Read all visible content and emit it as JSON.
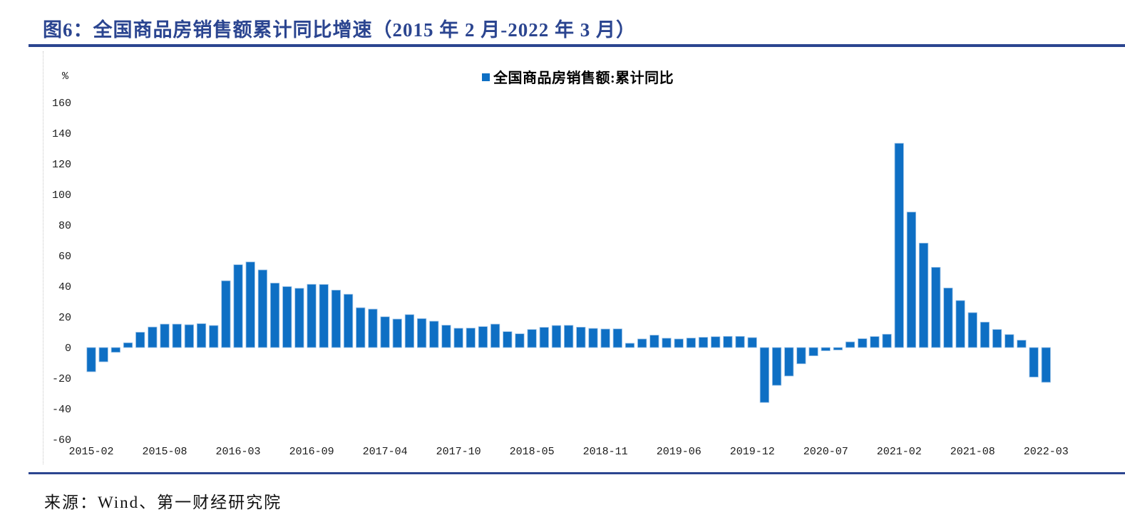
{
  "header": {
    "title": "图6：全国商品房销售额累计同比增速（2015 年 2 月-2022 年 3 月）"
  },
  "footer": {
    "source": "来源：Wind、第一财经研究院"
  },
  "colors": {
    "bar": "#0E6FC4",
    "bar_border": "#9CC2E7",
    "accent_rule": "#2B4590",
    "title_text": "#2B4590"
  },
  "chart_data": {
    "type": "bar",
    "title": "图6：全国商品房销售额累计同比增速（2015 年 2 月-2022 年 3 月）",
    "legend": "全国商品房销售额:累计同比",
    "legend_position": "top-center",
    "grid": false,
    "y_unit": "%",
    "ylim": [
      -60,
      170
    ],
    "y_ticks": [
      160,
      140,
      120,
      100,
      80,
      60,
      40,
      20,
      0,
      -20,
      -40,
      -60
    ],
    "x_tick_labels": [
      "2015-02",
      "2015-08",
      "2016-03",
      "2016-09",
      "2017-04",
      "2017-10",
      "2018-05",
      "2018-11",
      "2019-06",
      "2019-12",
      "2020-07",
      "2021-02",
      "2021-08",
      "2022-03"
    ],
    "x": [
      "2015-02",
      "2015-03",
      "2015-04",
      "2015-05",
      "2015-06",
      "2015-07",
      "2015-08",
      "2015-09",
      "2015-10",
      "2015-11",
      "2015-12",
      "2016-02",
      "2016-03",
      "2016-04",
      "2016-05",
      "2016-06",
      "2016-07",
      "2016-08",
      "2016-09",
      "2016-10",
      "2016-11",
      "2016-12",
      "2017-02",
      "2017-03",
      "2017-04",
      "2017-05",
      "2017-06",
      "2017-07",
      "2017-08",
      "2017-09",
      "2017-10",
      "2017-11",
      "2017-12",
      "2018-02",
      "2018-03",
      "2018-04",
      "2018-05",
      "2018-06",
      "2018-07",
      "2018-08",
      "2018-09",
      "2018-10",
      "2018-11",
      "2018-12",
      "2019-02",
      "2019-03",
      "2019-04",
      "2019-05",
      "2019-06",
      "2019-07",
      "2019-08",
      "2019-09",
      "2019-10",
      "2019-11",
      "2019-12",
      "2020-02",
      "2020-03",
      "2020-04",
      "2020-05",
      "2020-06",
      "2020-07",
      "2020-08",
      "2020-09",
      "2020-10",
      "2020-11",
      "2020-12",
      "2021-02",
      "2021-03",
      "2021-04",
      "2021-05",
      "2021-06",
      "2021-07",
      "2021-08",
      "2021-09",
      "2021-10",
      "2021-11",
      "2021-12",
      "2022-02",
      "2022-03"
    ],
    "values": [
      -15.8,
      -9.3,
      -3.1,
      3.1,
      10.0,
      13.4,
      15.3,
      15.3,
      14.9,
      15.6,
      14.4,
      43.6,
      54.1,
      55.9,
      50.7,
      42.1,
      39.8,
      38.7,
      41.3,
      41.2,
      37.5,
      34.8,
      26.0,
      25.1,
      20.1,
      18.6,
      21.5,
      18.9,
      17.2,
      14.6,
      12.6,
      12.7,
      13.7,
      15.3,
      10.4,
      9.0,
      11.8,
      13.2,
      14.4,
      14.5,
      13.3,
      12.5,
      12.1,
      12.2,
      2.8,
      5.6,
      8.1,
      6.1,
      5.6,
      6.2,
      6.7,
      7.1,
      7.3,
      7.3,
      6.5,
      -35.9,
      -24.7,
      -18.6,
      -10.6,
      -5.4,
      -2.1,
      -1.6,
      3.7,
      5.8,
      7.2,
      8.7,
      133.4,
      88.5,
      68.2,
      52.4,
      38.9,
      30.7,
      22.8,
      16.6,
      11.8,
      8.5,
      4.8,
      -19.3,
      -22.7
    ]
  }
}
